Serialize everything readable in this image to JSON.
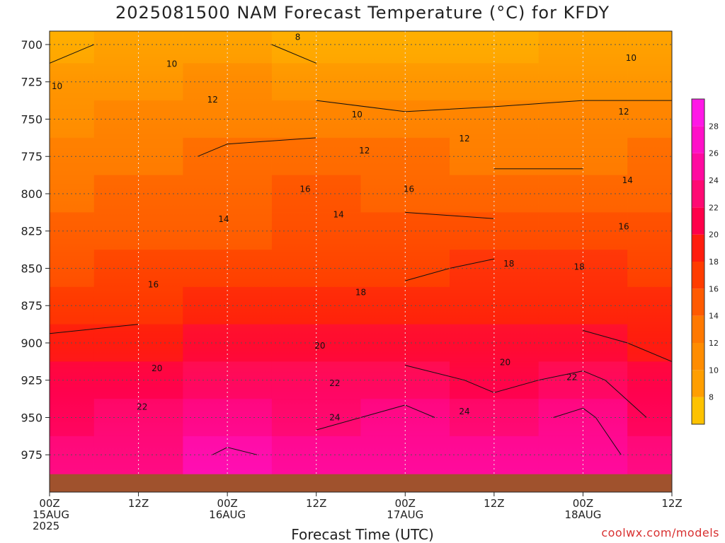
{
  "chart_data": {
    "type": "heatmap",
    "title": "2025081500 NAM Forecast Temperature (°C) for KFDY",
    "xlabel": "Forecast Time (UTC)",
    "ylabel": "",
    "x_ticks": [
      {
        "hour": 0,
        "line1": "00Z",
        "line2": "15AUG",
        "line3": "2025"
      },
      {
        "hour": 12,
        "line1": "12Z",
        "line2": "",
        "line3": ""
      },
      {
        "hour": 24,
        "line1": "00Z",
        "line2": "16AUG",
        "line3": ""
      },
      {
        "hour": 36,
        "line1": "12Z",
        "line2": "",
        "line3": ""
      },
      {
        "hour": 48,
        "line1": "00Z",
        "line2": "17AUG",
        "line3": ""
      },
      {
        "hour": 60,
        "line1": "12Z",
        "line2": "",
        "line3": ""
      },
      {
        "hour": 72,
        "line1": "00Z",
        "line2": "18AUG",
        "line3": ""
      },
      {
        "hour": 84,
        "line1": "12Z",
        "line2": "",
        "line3": ""
      }
    ],
    "xlim": [
      0,
      84
    ],
    "y_ticks": [
      700,
      725,
      750,
      775,
      800,
      825,
      850,
      875,
      900,
      925,
      950,
      975
    ],
    "ylim": [
      691,
      1000
    ],
    "grid": true,
    "colorbar": {
      "ticks": [
        8,
        10,
        12,
        14,
        16,
        18,
        20,
        22,
        24,
        26,
        28
      ],
      "colors": [
        "#fdc200",
        "#ff9e00",
        "#ff8c00",
        "#ff7800",
        "#ff5a00",
        "#ff3c00",
        "#ff1d0e",
        "#ff004a",
        "#ff0a73",
        "#ff0aa0",
        "#ff10c8",
        "#ff18e6"
      ],
      "range": [
        6,
        30
      ]
    },
    "pressure_levels": [
      700,
      725,
      750,
      775,
      800,
      825,
      850,
      875,
      900,
      925,
      950,
      975
    ],
    "hours": [
      0,
      12,
      24,
      36,
      48,
      60,
      72,
      84
    ],
    "temperature_c": [
      [
        9.5,
        10.5,
        11.0,
        9.0,
        8.0,
        9.0,
        10.0,
        10.5
      ],
      [
        10.5,
        11.0,
        12.0,
        11.0,
        10.0,
        11.0,
        11.5,
        11.5
      ],
      [
        11.5,
        12.0,
        13.0,
        13.0,
        12.5,
        12.5,
        12.5,
        12.5
      ],
      [
        12.5,
        13.0,
        14.5,
        15.0,
        14.0,
        13.5,
        13.5,
        14.0
      ],
      [
        13.5,
        14.0,
        15.0,
        16.0,
        15.5,
        15.0,
        15.0,
        15.0
      ],
      [
        14.5,
        15.0,
        15.5,
        16.0,
        16.5,
        16.5,
        16.0,
        16.5
      ],
      [
        15.5,
        16.0,
        17.0,
        17.0,
        17.5,
        18.5,
        18.0,
        17.5
      ],
      [
        16.5,
        17.0,
        18.0,
        18.0,
        19.0,
        19.5,
        19.0,
        18.5
      ],
      [
        18.5,
        19.0,
        20.0,
        20.0,
        20.5,
        20.0,
        20.5,
        19.5
      ],
      [
        20.0,
        21.0,
        22.0,
        22.0,
        23.0,
        21.5,
        22.5,
        20.5
      ],
      [
        21.0,
        22.0,
        24.0,
        23.5,
        24.5,
        23.0,
        24.5,
        21.0
      ],
      [
        22.0,
        23.5,
        26.5,
        25.0,
        25.0,
        24.0,
        25.5,
        22.0
      ]
    ],
    "contour_labels": [
      {
        "text": "8",
        "hour": 33.5,
        "p": 695
      },
      {
        "text": "10",
        "hour": 1,
        "p": 728
      },
      {
        "text": "10",
        "hour": 16.5,
        "p": 713
      },
      {
        "text": "10",
        "hour": 41.5,
        "p": 747
      },
      {
        "text": "10",
        "hour": 78.5,
        "p": 709
      },
      {
        "text": "12",
        "hour": 22,
        "p": 737
      },
      {
        "text": "12",
        "hour": 42.5,
        "p": 771
      },
      {
        "text": "12",
        "hour": 56,
        "p": 763
      },
      {
        "text": "12",
        "hour": 77.5,
        "p": 745
      },
      {
        "text": "14",
        "hour": 23.5,
        "p": 817
      },
      {
        "text": "14",
        "hour": 39,
        "p": 814
      },
      {
        "text": "14",
        "hour": 78,
        "p": 791
      },
      {
        "text": "16",
        "hour": 34.5,
        "p": 797
      },
      {
        "text": "16",
        "hour": 48.5,
        "p": 797
      },
      {
        "text": "16",
        "hour": 14,
        "p": 861
      },
      {
        "text": "16",
        "hour": 77.5,
        "p": 822
      },
      {
        "text": "18",
        "hour": 42,
        "p": 866
      },
      {
        "text": "18",
        "hour": 62,
        "p": 847
      },
      {
        "text": "18",
        "hour": 71.5,
        "p": 849
      },
      {
        "text": "20",
        "hour": 14.5,
        "p": 917
      },
      {
        "text": "20",
        "hour": 36.5,
        "p": 902
      },
      {
        "text": "20",
        "hour": 61.5,
        "p": 913
      },
      {
        "text": "22",
        "hour": 12.5,
        "p": 943
      },
      {
        "text": "22",
        "hour": 38.5,
        "p": 927
      },
      {
        "text": "22",
        "hour": 70.5,
        "p": 923
      },
      {
        "text": "24",
        "hour": 38.5,
        "p": 950
      },
      {
        "text": "24",
        "hour": 56,
        "p": 946
      }
    ],
    "ground_level_hpa": 988
  },
  "watermark": "coolwx.com/models",
  "colors": {
    "contour": "#111111",
    "ground": "#a0522d",
    "grid": "#555555"
  }
}
